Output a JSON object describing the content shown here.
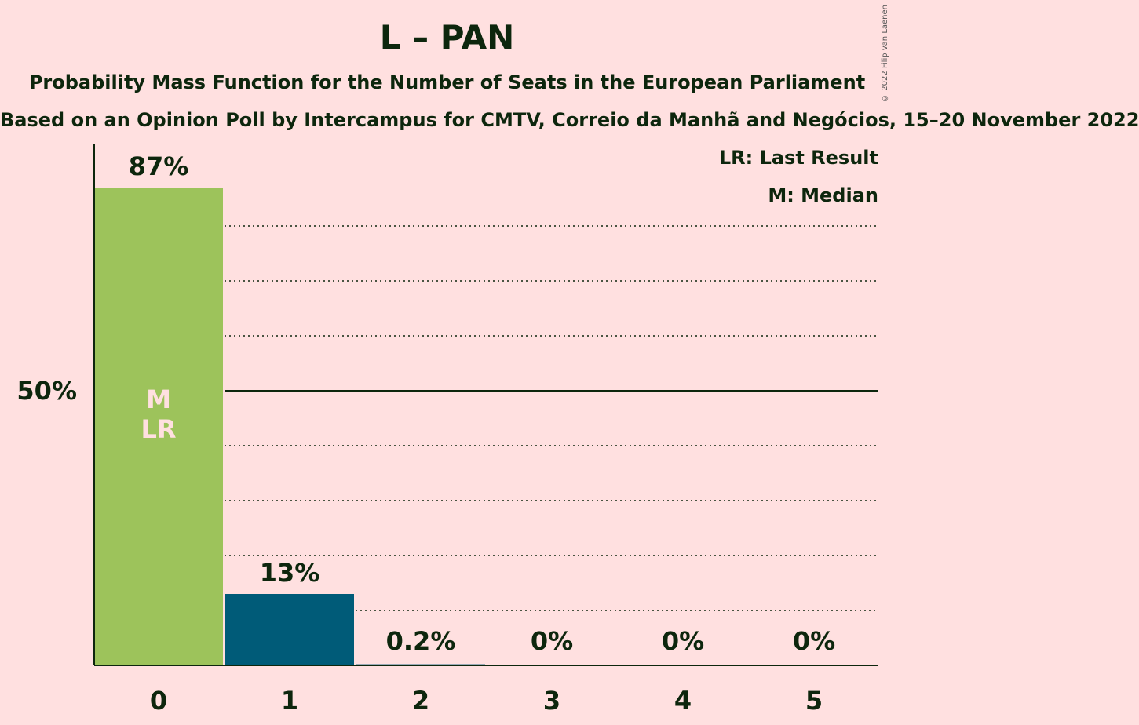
{
  "title": "L – PAN",
  "subtitle": "Probability Mass Function for the Number of Seats in the European Parliament",
  "subtitle2": "Based on an Opinion Poll by Intercampus for CMTV, Correio da Manhã and Negócios, 15–20 November 2022",
  "copyright": "© 2022 Filip van Laenen",
  "legend": {
    "last_result": "LR: Last Result",
    "median": "M: Median"
  },
  "colors": {
    "background": "#ffe0e0",
    "party": "#9dc35b",
    "other": "#005b78",
    "text": "#0d260d",
    "median_marker_text": "#ffe0e0"
  },
  "chart_data": {
    "type": "bar",
    "categories": [
      "0",
      "1",
      "2",
      "3",
      "4",
      "5"
    ],
    "values": [
      87,
      13,
      0.2,
      0,
      0,
      0
    ],
    "value_labels": [
      "87%",
      "13%",
      "0.2%",
      "0%",
      "0%",
      "0%"
    ],
    "ylim": [
      0,
      95
    ],
    "y_tick_label": "50%",
    "y_tick_value": 50,
    "gridlines": [
      10,
      20,
      30,
      40,
      60,
      70,
      80
    ],
    "bar_markers": [
      {
        "index": 0,
        "lines": [
          "M",
          "LR"
        ]
      }
    ]
  }
}
